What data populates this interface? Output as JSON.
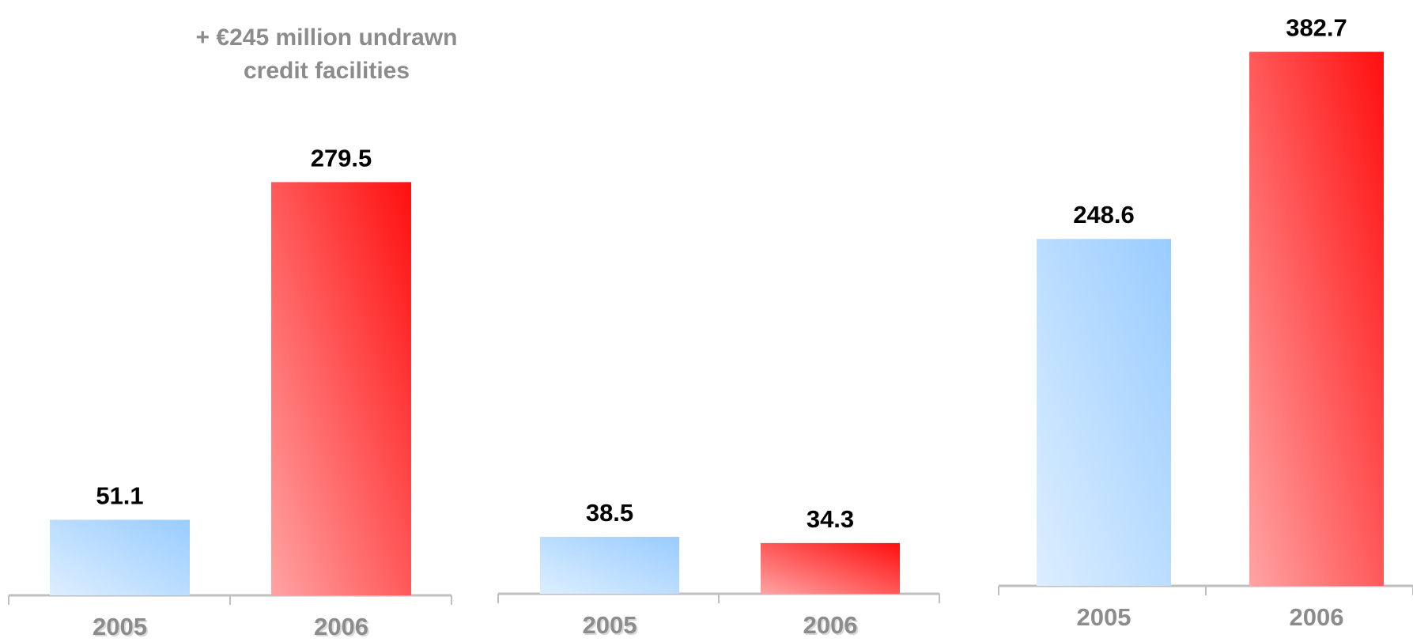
{
  "annotation": {
    "line1": "+ €245 million undrawn",
    "line2": "credit facilities"
  },
  "colors": {
    "bar_2005_light": "#dceeff",
    "bar_2005_dark": "#99ccff",
    "bar_2006_light": "#ffa3a3",
    "bar_2006_dark": "#ff0f0f",
    "axis": "#bfbfbf",
    "tick_label": "#8c8c8c"
  },
  "chart_data": [
    {
      "type": "bar",
      "categories": [
        "2005",
        "2006"
      ],
      "values": [
        51.1,
        279.5
      ],
      "value_labels": [
        "51.1",
        "279.5"
      ]
    },
    {
      "type": "bar",
      "categories": [
        "2005",
        "2006"
      ],
      "values": [
        38.5,
        34.3
      ],
      "value_labels": [
        "38.5",
        "34.3"
      ]
    },
    {
      "type": "bar",
      "categories": [
        "2005",
        "2006"
      ],
      "values": [
        248.6,
        382.7
      ],
      "value_labels": [
        "248.6",
        "382.7"
      ]
    }
  ]
}
